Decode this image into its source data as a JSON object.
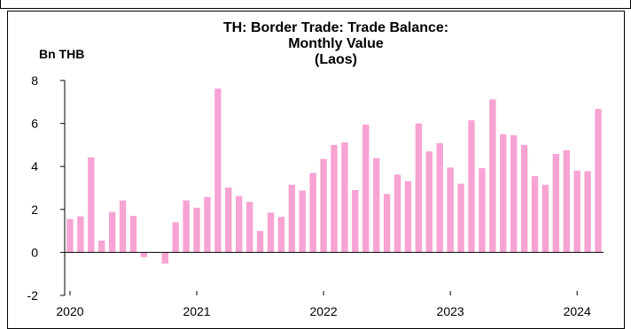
{
  "chart_data": {
    "type": "bar",
    "title": [
      "TH: Border Trade: Trade Balance:",
      "Monthly Value",
      "(Laos)"
    ],
    "ylabel": "Bn THB",
    "xlabel": "",
    "ylim": [
      -2,
      8
    ],
    "yticks": [
      -2,
      0,
      2,
      4,
      6,
      8
    ],
    "xlim": [
      "2020-01",
      "2024-03"
    ],
    "x_tick_labels": [
      "2020",
      "2021",
      "2022",
      "2023",
      "2024"
    ],
    "grid": false,
    "bar_color": "#f7a3d3",
    "categories": [
      "2020-01",
      "2020-02",
      "2020-03",
      "2020-04",
      "2020-05",
      "2020-06",
      "2020-07",
      "2020-08",
      "2020-09",
      "2020-10",
      "2020-11",
      "2020-12",
      "2021-01",
      "2021-02",
      "2021-03",
      "2021-04",
      "2021-05",
      "2021-06",
      "2021-07",
      "2021-08",
      "2021-09",
      "2021-10",
      "2021-11",
      "2021-12",
      "2022-01",
      "2022-02",
      "2022-03",
      "2022-04",
      "2022-05",
      "2022-06",
      "2022-07",
      "2022-08",
      "2022-09",
      "2022-10",
      "2022-11",
      "2022-12",
      "2023-01",
      "2023-02",
      "2023-03",
      "2023-04",
      "2023-05",
      "2023-06",
      "2023-07",
      "2023-08",
      "2023-09",
      "2023-10",
      "2023-11",
      "2023-12",
      "2024-01",
      "2024-02",
      "2024-03"
    ],
    "values": [
      1.55,
      1.68,
      4.42,
      0.55,
      1.88,
      2.42,
      1.7,
      -0.22,
      0.0,
      -0.52,
      1.4,
      2.42,
      2.08,
      2.58,
      7.62,
      3.02,
      2.62,
      2.35,
      1.0,
      1.85,
      1.65,
      3.15,
      2.88,
      3.7,
      4.35,
      5.0,
      5.12,
      2.9,
      5.95,
      4.38,
      2.72,
      3.62,
      3.32,
      6.0,
      4.7,
      5.08,
      3.95,
      3.2,
      6.15,
      3.92,
      7.12,
      5.5,
      5.45,
      5.0,
      3.55,
      3.15,
      4.58,
      4.75,
      3.8,
      3.78,
      6.68
    ]
  }
}
